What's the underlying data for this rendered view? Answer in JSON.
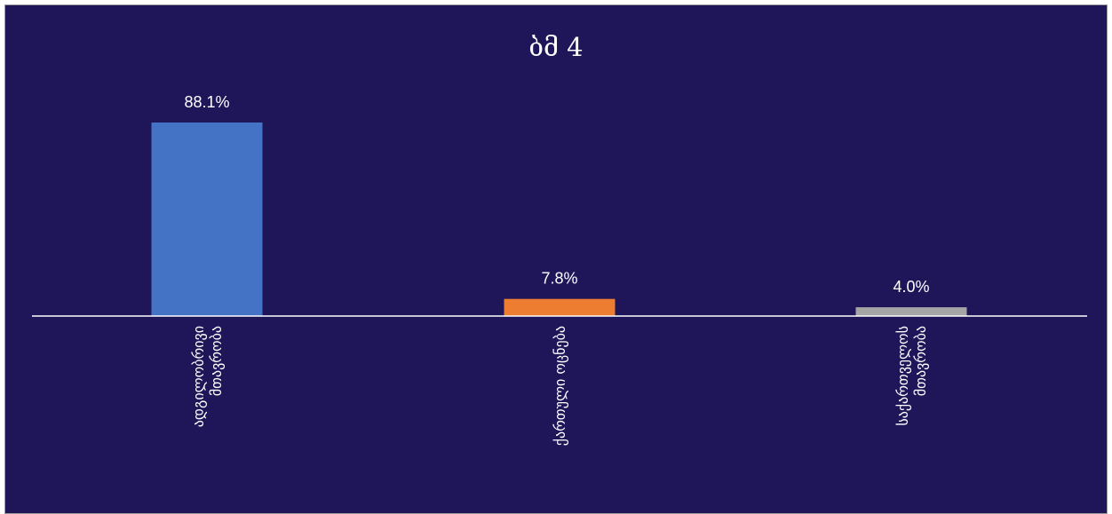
{
  "chart_data": {
    "type": "bar",
    "title": "ბმ 4",
    "categories": [
      [
        "ადგილობრივი",
        "მთავრობა"
      ],
      [
        "ქართული ოცნება"
      ],
      [
        "საქართველოს",
        "მთავრობა"
      ]
    ],
    "values": [
      88.1,
      7.8,
      4.0
    ],
    "value_labels": [
      "88.1%",
      "7.8%",
      "4.0%"
    ],
    "colors": [
      "#4472C4",
      "#ED7D31",
      "#A5A5A5"
    ],
    "ylim": [
      0,
      100
    ],
    "grid": false,
    "legend": "none",
    "background": "#1F165A"
  }
}
